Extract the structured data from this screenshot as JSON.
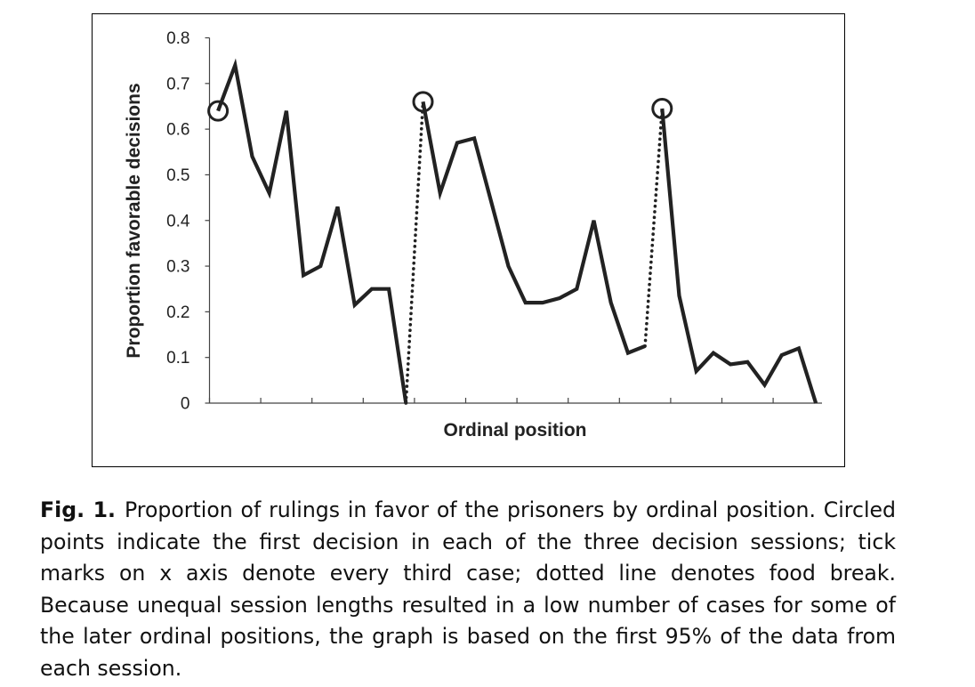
{
  "chart_data": {
    "type": "line",
    "xlabel": "Ordinal position",
    "ylabel": "Proportion favorable decisions",
    "ylim": [
      0,
      0.8
    ],
    "yticks": [
      "0",
      "0.1",
      "0.2",
      "0.3",
      "0.4",
      "0.5",
      "0.6",
      "0.7",
      "0.8"
    ],
    "x_tick_interval": 3,
    "grid": false,
    "legend": "none",
    "line_color": "#222222",
    "series": [
      {
        "values": [
          0.64,
          0.74,
          0.54,
          0.46,
          0.64,
          0.28,
          0.3,
          0.43,
          0.215,
          0.25,
          0.25,
          0.0
        ]
      },
      {
        "values": [
          0.66,
          0.46,
          0.57,
          0.58,
          0.44,
          0.3,
          0.22,
          0.22,
          0.23,
          0.25,
          0.4,
          0.22,
          0.11,
          0.125
        ]
      },
      {
        "values": [
          0.645,
          0.235,
          0.07,
          0.11,
          0.085,
          0.09,
          0.04,
          0.105,
          0.12,
          0.0
        ]
      }
    ],
    "food_breaks": [
      [
        0,
        1
      ],
      [
        1,
        2
      ]
    ],
    "circled_points": "first decision of each session"
  },
  "caption": {
    "label": "Fig. 1.",
    "text": "Proportion of rulings in favor of the prisoners by ordinal position. Circled points indicate the first decision in each of the three decision sessions; tick marks on x axis denote every third case; dotted line denotes food break. Because unequal session lengths resulted in a low number of cases for some of the later ordinal positions, the graph is based on the first 95% of the data from each session."
  }
}
